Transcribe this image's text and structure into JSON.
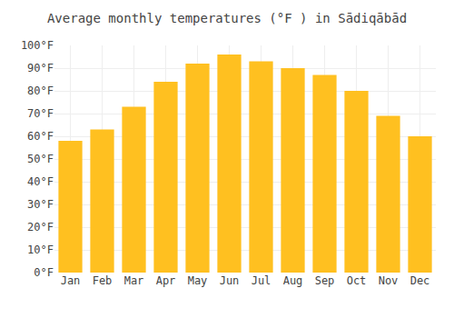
{
  "chart_data": {
    "type": "bar",
    "title": "Average monthly temperatures (°F ) in Sādiqābād",
    "categories": [
      "Jan",
      "Feb",
      "Mar",
      "Apr",
      "May",
      "Jun",
      "Jul",
      "Aug",
      "Sep",
      "Oct",
      "Nov",
      "Dec"
    ],
    "values": [
      58,
      63,
      73,
      84,
      92,
      96,
      93,
      90,
      87,
      80,
      69,
      60
    ],
    "color": "#FFC020",
    "ylim": [
      0,
      100
    ],
    "yticks": [
      {
        "value": 0,
        "label": "0°F"
      },
      {
        "value": 10,
        "label": "10°F"
      },
      {
        "value": 20,
        "label": "20°F"
      },
      {
        "value": 30,
        "label": "30°F"
      },
      {
        "value": 40,
        "label": "40°F"
      },
      {
        "value": 50,
        "label": "50°F"
      },
      {
        "value": 60,
        "label": "60°F"
      },
      {
        "value": 70,
        "label": "70°F"
      },
      {
        "value": 80,
        "label": "80°F"
      },
      {
        "value": 90,
        "label": "90°F"
      },
      {
        "value": 100,
        "label": "100°F"
      }
    ],
    "grid": true
  }
}
